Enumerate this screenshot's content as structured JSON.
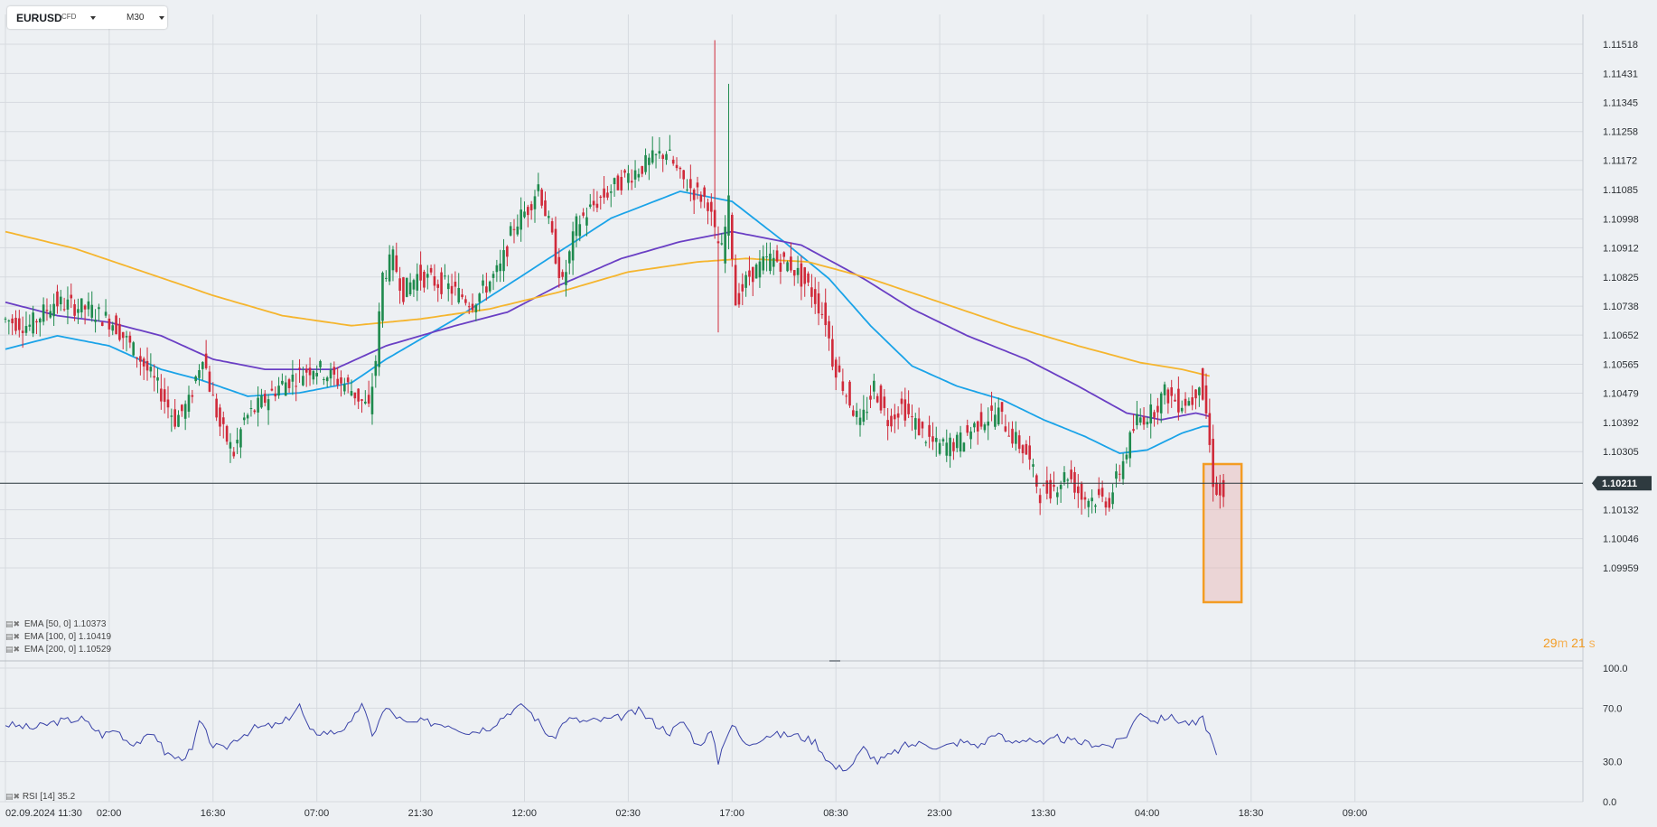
{
  "header": {
    "symbol": "EURUSD",
    "instrument_type": "CFD",
    "timeframe": "M30"
  },
  "indicators": [
    {
      "label": "EMA",
      "params": "[50,  0]",
      "value": "1.10373",
      "color": "#1aa3e8"
    },
    {
      "label": "EMA",
      "params": "[100,  0]",
      "value": "1.10419",
      "color": "#6a3fc4"
    },
    {
      "label": "EMA",
      "params": "[200,  0]",
      "value": "1.10529",
      "color": "#f5b52e"
    }
  ],
  "rsi": {
    "label": "RSI",
    "params": "[14]",
    "value": "35.2",
    "color": "#3a43a8"
  },
  "timer": {
    "minutes": "29",
    "minutes_unit": "m",
    "seconds": "21",
    "seconds_unit": "s"
  },
  "current_price": "1.10211",
  "colors": {
    "bull": "#1e8a4d",
    "bear": "#d02a3a",
    "highlight": "#f39c23",
    "price_line": "#2e3a3f"
  },
  "chart_data": [
    {
      "type": "candlestick",
      "title": "EURUSD",
      "xlabel": "",
      "ylabel": "",
      "x_tick_labels": [
        "02.09.2024  11:30",
        "02:00",
        "16:30",
        "07:00",
        "21:30",
        "12:00",
        "02:30",
        "17:00",
        "08:30",
        "23:00",
        "13:30",
        "04:00",
        "18:30",
        "09:00"
      ],
      "x_tick_candles": [
        0,
        30,
        60,
        90,
        120,
        150,
        180,
        210,
        240,
        270,
        300,
        330,
        360,
        390
      ],
      "y_tick_labels": [
        "1.11518",
        "1.11431",
        "1.11345",
        "1.11258",
        "1.11172",
        "1.11085",
        "1.10998",
        "1.10912",
        "1.10825",
        "1.10738",
        "1.10652",
        "1.10565",
        "1.10479",
        "1.10392",
        "1.10305",
        "1.10211",
        "1.10132",
        "1.10046",
        "1.09959"
      ],
      "ylim": [
        1.0996,
        1.1158
      ],
      "price_anchors": [
        [
          0,
          1.107
        ],
        [
          8,
          1.1068
        ],
        [
          15,
          1.1075
        ],
        [
          25,
          1.1073
        ],
        [
          32,
          1.1069
        ],
        [
          40,
          1.1058
        ],
        [
          46,
          1.1048
        ],
        [
          50,
          1.104
        ],
        [
          54,
          1.1045
        ],
        [
          58,
          1.106
        ],
        [
          60,
          1.105
        ],
        [
          63,
          1.1038
        ],
        [
          67,
          1.103
        ],
        [
          70,
          1.104
        ],
        [
          80,
          1.105
        ],
        [
          90,
          1.1056
        ],
        [
          100,
          1.105
        ],
        [
          106,
          1.1043
        ],
        [
          108,
          1.1058
        ],
        [
          110,
          1.1083
        ],
        [
          113,
          1.1088
        ],
        [
          116,
          1.1078
        ],
        [
          120,
          1.1083
        ],
        [
          128,
          1.108
        ],
        [
          136,
          1.1075
        ],
        [
          144,
          1.1085
        ],
        [
          148,
          1.1098
        ],
        [
          152,
          1.1103
        ],
        [
          155,
          1.111
        ],
        [
          158,
          1.1098
        ],
        [
          162,
          1.108
        ],
        [
          166,
          1.1098
        ],
        [
          172,
          1.1105
        ],
        [
          180,
          1.1112
        ],
        [
          186,
          1.1116
        ],
        [
          192,
          1.112
        ],
        [
          196,
          1.1112
        ],
        [
          200,
          1.1108
        ],
        [
          204,
          1.1105
        ],
        [
          206,
          1.1095
        ],
        [
          208,
          1.109
        ],
        [
          210,
          1.1104
        ],
        [
          212,
          1.1075
        ],
        [
          216,
          1.1083
        ],
        [
          222,
          1.1088
        ],
        [
          228,
          1.1086
        ],
        [
          234,
          1.1078
        ],
        [
          238,
          1.107
        ],
        [
          240,
          1.1058
        ],
        [
          244,
          1.1048
        ],
        [
          248,
          1.1038
        ],
        [
          252,
          1.105
        ],
        [
          256,
          1.104
        ],
        [
          260,
          1.1044
        ],
        [
          266,
          1.1036
        ],
        [
          270,
          1.1032
        ],
        [
          276,
          1.1033
        ],
        [
          283,
          1.104
        ],
        [
          288,
          1.1042
        ],
        [
          292,
          1.1035
        ],
        [
          296,
          1.103
        ],
        [
          300,
          1.1018
        ],
        [
          304,
          1.102
        ],
        [
          308,
          1.1024
        ],
        [
          312,
          1.1017
        ],
        [
          320,
          1.1016
        ],
        [
          324,
          1.1028
        ],
        [
          328,
          1.104
        ],
        [
          332,
          1.1042
        ],
        [
          336,
          1.1048
        ],
        [
          340,
          1.1045
        ],
        [
          344,
          1.1046
        ],
        [
          346,
          1.1052
        ],
        [
          348,
          1.1042
        ],
        [
          350,
          1.1022
        ],
        [
          352,
          1.1017
        ]
      ],
      "ema_series": [
        {
          "period": 50,
          "color": "#1aa3e8",
          "anchors": [
            [
              0,
              1.1061
            ],
            [
              15,
              1.1065
            ],
            [
              30,
              1.1062
            ],
            [
              45,
              1.1055
            ],
            [
              56,
              1.1052
            ],
            [
              70,
              1.1047
            ],
            [
              85,
              1.1048
            ],
            [
              100,
              1.1051
            ],
            [
              110,
              1.1058
            ],
            [
              130,
              1.107
            ],
            [
              145,
              1.108
            ],
            [
              160,
              1.109
            ],
            [
              175,
              1.11
            ],
            [
              195,
              1.1108
            ],
            [
              210,
              1.1105
            ],
            [
              225,
              1.1093
            ],
            [
              238,
              1.1082
            ],
            [
              250,
              1.1068
            ],
            [
              262,
              1.1056
            ],
            [
              275,
              1.105
            ],
            [
              288,
              1.1046
            ],
            [
              300,
              1.104
            ],
            [
              312,
              1.1035
            ],
            [
              322,
              1.103
            ],
            [
              330,
              1.1031
            ],
            [
              340,
              1.1036
            ],
            [
              346,
              1.1038
            ],
            [
              348,
              1.1038
            ]
          ]
        },
        {
          "period": 100,
          "color": "#6a3fc4",
          "anchors": [
            [
              0,
              1.1075
            ],
            [
              15,
              1.1071
            ],
            [
              30,
              1.1069
            ],
            [
              45,
              1.1065
            ],
            [
              60,
              1.1058
            ],
            [
              75,
              1.1055
            ],
            [
              95,
              1.1055
            ],
            [
              110,
              1.1062
            ],
            [
              130,
              1.1068
            ],
            [
              145,
              1.1072
            ],
            [
              160,
              1.108
            ],
            [
              178,
              1.1088
            ],
            [
              195,
              1.1093
            ],
            [
              210,
              1.1096
            ],
            [
              230,
              1.1092
            ],
            [
              248,
              1.1082
            ],
            [
              262,
              1.1073
            ],
            [
              278,
              1.1065
            ],
            [
              295,
              1.1058
            ],
            [
              310,
              1.105
            ],
            [
              324,
              1.1042
            ],
            [
              334,
              1.104
            ],
            [
              344,
              1.1042
            ],
            [
              348,
              1.1041
            ]
          ]
        },
        {
          "period": 200,
          "color": "#f5b52e",
          "anchors": [
            [
              0,
              1.1096
            ],
            [
              20,
              1.1091
            ],
            [
              40,
              1.1084
            ],
            [
              60,
              1.1077
            ],
            [
              80,
              1.1071
            ],
            [
              100,
              1.1068
            ],
            [
              120,
              1.107
            ],
            [
              140,
              1.1073
            ],
            [
              160,
              1.1078
            ],
            [
              180,
              1.1084
            ],
            [
              200,
              1.1087
            ],
            [
              214,
              1.1088
            ],
            [
              232,
              1.1087
            ],
            [
              250,
              1.1082
            ],
            [
              270,
              1.1075
            ],
            [
              290,
              1.1068
            ],
            [
              310,
              1.1062
            ],
            [
              328,
              1.1057
            ],
            [
              340,
              1.1055
            ],
            [
              348,
              1.1053
            ]
          ]
        }
      ]
    },
    {
      "type": "line",
      "title": "RSI [14]",
      "xlabel": "",
      "ylabel": "",
      "y_tick_labels": [
        "100.0",
        "70.0",
        "30.0",
        "0.0"
      ],
      "ylim": [
        0,
        100
      ],
      "rsi_anchors": [
        [
          0,
          58
        ],
        [
          8,
          55
        ],
        [
          15,
          60
        ],
        [
          22,
          62
        ],
        [
          25,
          56
        ],
        [
          28,
          50
        ],
        [
          32,
          54
        ],
        [
          36,
          44
        ],
        [
          40,
          46
        ],
        [
          43,
          52
        ],
        [
          46,
          37
        ],
        [
          50,
          32
        ],
        [
          54,
          38
        ],
        [
          56,
          60
        ],
        [
          60,
          42
        ],
        [
          63,
          39
        ],
        [
          67,
          48
        ],
        [
          72,
          55
        ],
        [
          80,
          58
        ],
        [
          85,
          72
        ],
        [
          88,
          52
        ],
        [
          95,
          52
        ],
        [
          100,
          58
        ],
        [
          103,
          75
        ],
        [
          106,
          48
        ],
        [
          108,
          62
        ],
        [
          110,
          70
        ],
        [
          116,
          58
        ],
        [
          120,
          60
        ],
        [
          128,
          58
        ],
        [
          134,
          52
        ],
        [
          140,
          56
        ],
        [
          146,
          68
        ],
        [
          150,
          72
        ],
        [
          154,
          60
        ],
        [
          158,
          46
        ],
        [
          162,
          62
        ],
        [
          168,
          60
        ],
        [
          176,
          62
        ],
        [
          183,
          68
        ],
        [
          188,
          58
        ],
        [
          192,
          52
        ],
        [
          196,
          60
        ],
        [
          200,
          42
        ],
        [
          204,
          52
        ],
        [
          206,
          30
        ],
        [
          208,
          48
        ],
        [
          210,
          58
        ],
        [
          214,
          42
        ],
        [
          220,
          50
        ],
        [
          228,
          50
        ],
        [
          234,
          45
        ],
        [
          238,
          30
        ],
        [
          240,
          25
        ],
        [
          244,
          26
        ],
        [
          248,
          40
        ],
        [
          252,
          30
        ],
        [
          256,
          35
        ],
        [
          260,
          42
        ],
        [
          266,
          44
        ],
        [
          270,
          40
        ],
        [
          276,
          45
        ],
        [
          282,
          42
        ],
        [
          286,
          52
        ],
        [
          290,
          44
        ],
        [
          296,
          48
        ],
        [
          300,
          42
        ],
        [
          304,
          48
        ],
        [
          308,
          45
        ],
        [
          312,
          44
        ],
        [
          320,
          42
        ],
        [
          324,
          50
        ],
        [
          328,
          68
        ],
        [
          332,
          60
        ],
        [
          336,
          64
        ],
        [
          340,
          60
        ],
        [
          344,
          58
        ],
        [
          346,
          62
        ],
        [
          348,
          50
        ],
        [
          350,
          35
        ]
      ]
    }
  ]
}
